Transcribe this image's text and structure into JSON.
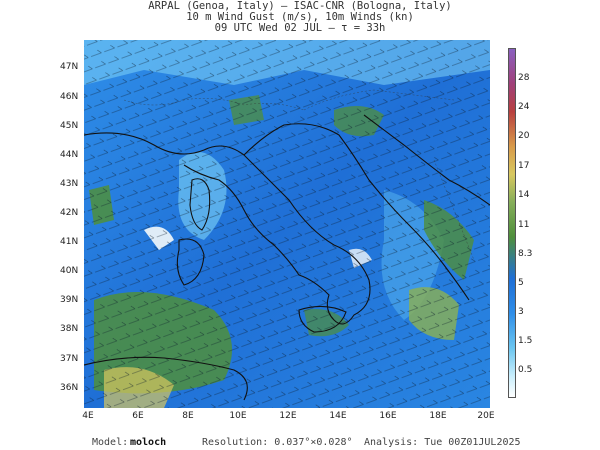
{
  "header": {
    "line1": "ARPAL (Genoa, Italy)  —  ISAC-CNR (Bologna, Italy)",
    "line2": "10 m Wind Gust (m/s), 10m Winds (kn)",
    "line3": "09 UTC Wed 02 JUL  —  τ = 33h"
  },
  "map": {
    "lat_labels": [
      "47N",
      "46N",
      "45N",
      "44N",
      "43N",
      "42N",
      "41N",
      "40N",
      "39N",
      "38N",
      "37N",
      "36N"
    ],
    "lon_labels": [
      "4E",
      "6E",
      "8E",
      "10E",
      "12E",
      "14E",
      "16E",
      "18E",
      "20E"
    ],
    "colors": {
      "sea_low": "#1f6fd6",
      "sea_mid": "#2f8ee8",
      "calm": "#7fd3f7",
      "gust_green": "#4f8f3c",
      "gust_green_light": "#86ae5a",
      "gust_yellow": "#d8c860",
      "gust_white": "#f4f8fa",
      "coast": "#111111"
    }
  },
  "colorbar": {
    "labels": [
      "28",
      "24",
      "20",
      "17",
      "14",
      "11",
      "8.3",
      "5",
      "3",
      "1.5",
      "0.5"
    ],
    "colors": [
      "#ffffff",
      "#c9eefc",
      "#6cc6f0",
      "#2f8ee8",
      "#1f6fd6",
      "#4f8f3c",
      "#86ae5a",
      "#d8c860",
      "#d89a4a",
      "#b84040",
      "#a0407a",
      "#8a60c0"
    ]
  },
  "footer": {
    "model_label": "Model:",
    "model_value": "moloch",
    "resolution": "Resolution: 0.037°×0.028°",
    "analysis": "Analysis: Tue 00Z01JUL2025"
  }
}
